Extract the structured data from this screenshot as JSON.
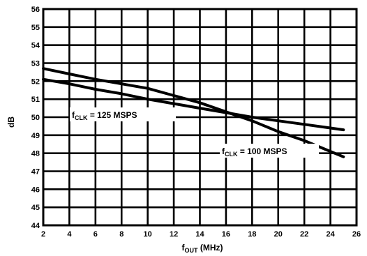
{
  "chart_data": {
    "type": "line",
    "title": "",
    "xlabel": {
      "main": "f",
      "sub": "OUT",
      "rest": " (MHz)"
    },
    "ylabel": "dB",
    "xlim": [
      2,
      26
    ],
    "ylim": [
      44,
      56
    ],
    "xticks": [
      2,
      4,
      6,
      8,
      10,
      12,
      14,
      16,
      18,
      20,
      22,
      24,
      26
    ],
    "yticks": [
      44,
      45,
      46,
      47,
      48,
      49,
      50,
      51,
      52,
      53,
      54,
      55,
      56
    ],
    "grid": true,
    "series": [
      {
        "name": {
          "main": "f",
          "sub": "CLK",
          "rest": " = 125 MSPS"
        },
        "x": [
          2,
          4,
          6,
          8,
          10,
          12,
          14,
          16,
          18,
          20,
          22,
          24,
          25
        ],
        "y": [
          52.1,
          51.85,
          51.55,
          51.3,
          51.0,
          50.75,
          50.5,
          50.25,
          50.0,
          49.8,
          49.6,
          49.4,
          49.3
        ]
      },
      {
        "name": {
          "main": "f",
          "sub": "CLK",
          "rest": " = 100 MSPS"
        },
        "x": [
          2,
          4,
          6,
          8,
          10,
          12,
          14,
          16,
          18,
          20,
          22,
          24,
          25
        ],
        "y": [
          52.7,
          52.4,
          52.1,
          51.85,
          51.6,
          51.2,
          50.8,
          50.3,
          49.8,
          49.2,
          48.7,
          48.1,
          47.8
        ]
      }
    ]
  }
}
